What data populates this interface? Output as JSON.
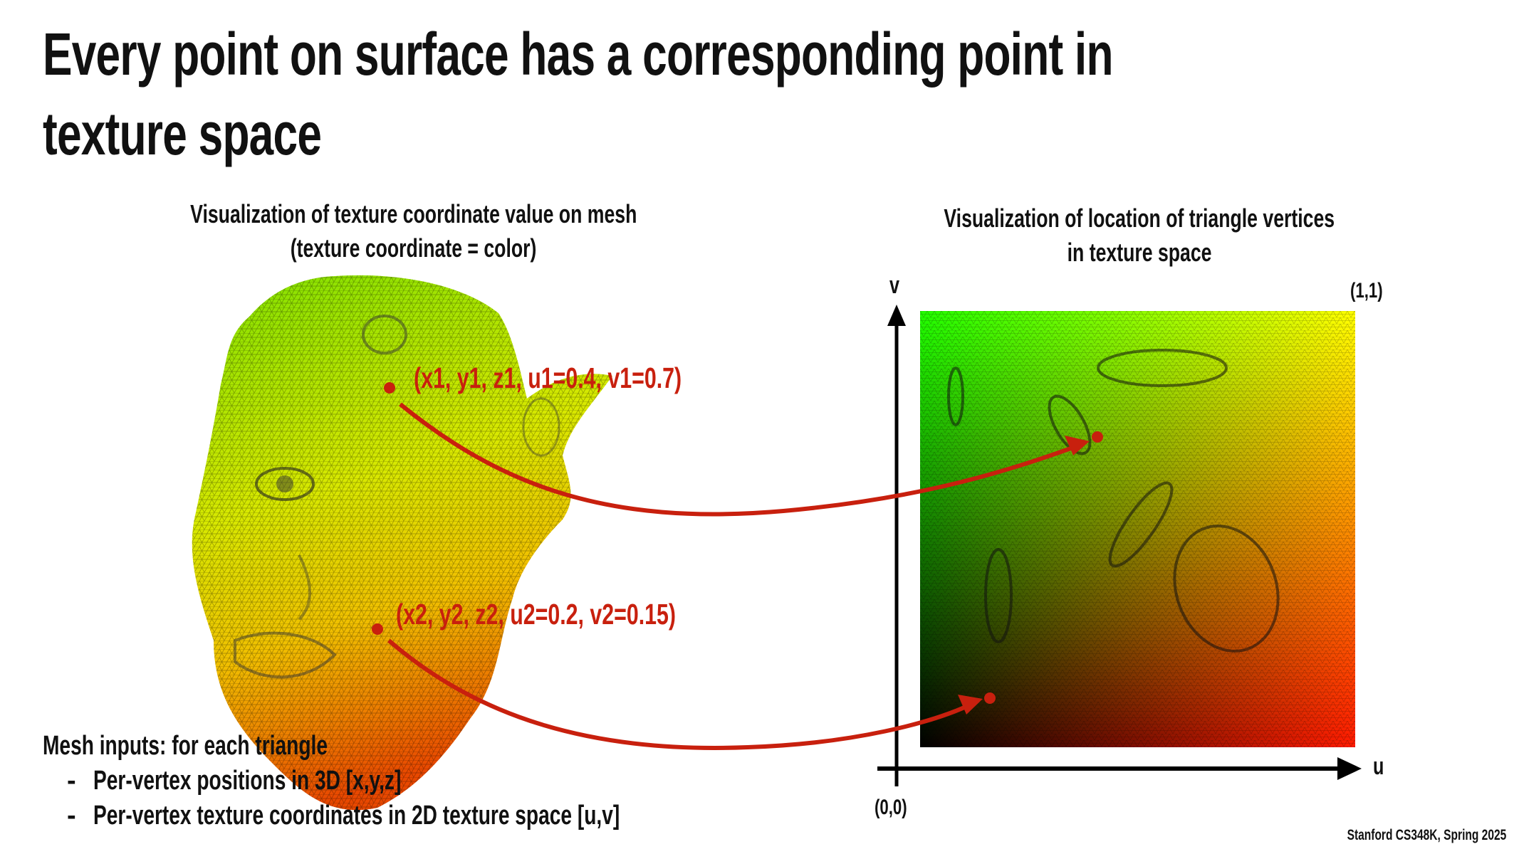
{
  "title": {
    "line1": "Every point on surface has a corresponding point in",
    "line2": "texture space"
  },
  "left_caption": {
    "line1": "Visualization of texture coordinate value on mesh",
    "line2": "(texture coordinate = color)"
  },
  "right_caption": {
    "line1": "Visualization of location of triangle vertices",
    "line2": "in texture space"
  },
  "axes": {
    "v_label": "v",
    "u_label": "u",
    "top_right": "(1,1)",
    "origin": "(0,0)"
  },
  "points": [
    {
      "label": "(x1, y1, z1, u1=0.4, v1=0.7)",
      "u": 0.4,
      "v": 0.7
    },
    {
      "label": "(x2, y2, z2, u2=0.2, v2=0.15)",
      "u": 0.2,
      "v": 0.15
    }
  ],
  "mesh_inputs": {
    "heading": "Mesh inputs: for each triangle",
    "bullets": [
      "Per-vertex positions in 3D [x,y,z]",
      "Per-vertex texture coordinates in 2D texture space [u,v]"
    ],
    "dash": "-"
  },
  "footer": "Stanford CS348K, Spring 2025",
  "colors": {
    "accent_red": "#c8200e",
    "text": "#111111"
  }
}
